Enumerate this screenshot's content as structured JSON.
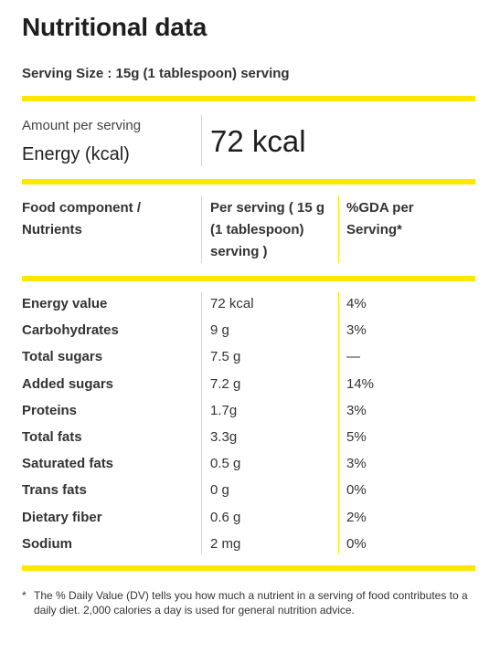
{
  "title": "Nutritional data",
  "serving_size": "Serving Size : 15g (1 tablespoon) serving",
  "amount": {
    "label": "Amount per serving",
    "name": "Energy (kcal)",
    "value": "72 kcal"
  },
  "table": {
    "headers": {
      "component_line1": "Food component /",
      "component_line2": "Nutrients",
      "per_serving_line1": "Per serving ( 15 g",
      "per_serving_line2": "(1 tablespoon)",
      "per_serving_line3": "serving )",
      "gda_line1": "%GDA per",
      "gda_line2": "Serving*"
    },
    "rows": [
      {
        "name": "Energy value",
        "per_serving": "72 kcal",
        "gda": "4%"
      },
      {
        "name": "Carbohydrates",
        "per_serving": "9 g",
        "gda": "3%"
      },
      {
        "name": "Total sugars",
        "per_serving": "7.5 g",
        "gda": "—"
      },
      {
        "name": "Added sugars",
        "per_serving": "7.2 g",
        "gda": "14%"
      },
      {
        "name": "Proteins",
        "per_serving": "1.7g",
        "gda": "3%"
      },
      {
        "name": "Total fats",
        "per_serving": "3.3g",
        "gda": "5%"
      },
      {
        "name": "Saturated fats",
        "per_serving": "0.5 g",
        "gda": "3%"
      },
      {
        "name": "Trans fats",
        "per_serving": "0 g",
        "gda": "0%"
      },
      {
        "name": "Dietary fiber",
        "per_serving": "0.6 g",
        "gda": "2%"
      },
      {
        "name": "Sodium",
        "per_serving": "2 mg",
        "gda": "0%"
      }
    ]
  },
  "footnote": {
    "marker": "*",
    "text": "The % Daily Value (DV) tells you how much a nutrient in a serving of food contributes to a daily diet. 2,000 calories a day is used for general nutrition advice."
  },
  "colors": {
    "accent": "#ffe600",
    "text": "#222222"
  }
}
